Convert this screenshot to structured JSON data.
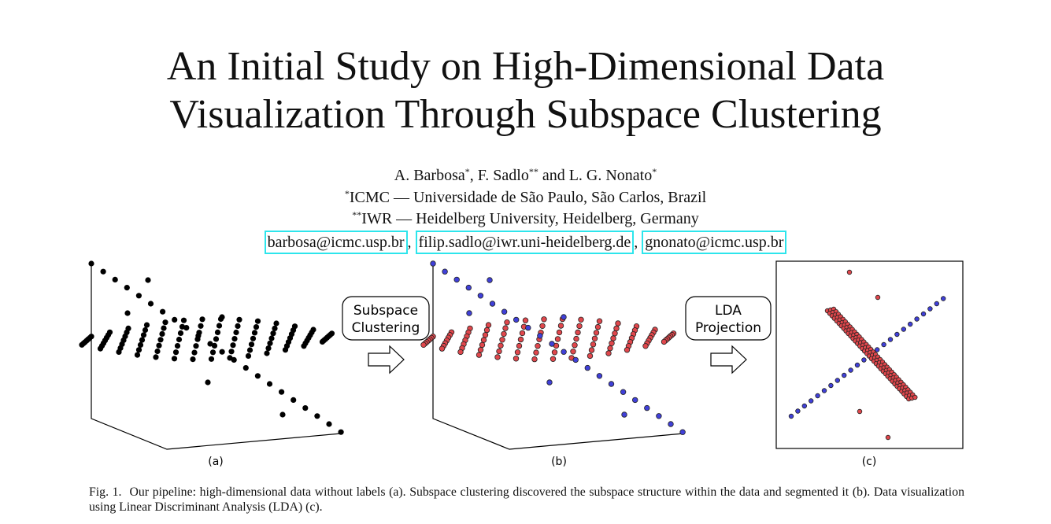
{
  "title": {
    "line1": "An Initial Study on High-Dimensional Data",
    "line2": "Visualization Through Subspace Clustering"
  },
  "authors": {
    "a1": "A. Barbosa",
    "a1_mark": "*",
    "sep1": ", F. Sadlo",
    "a2_mark": "**",
    "sep2": " and L. G. Nonato",
    "a3_mark": "*",
    "aff1_mark": "*",
    "aff1": "ICMC — Universidade de São Paulo, São Carlos, Brazil",
    "aff2_mark": "**",
    "aff2": "IWR — Heidelberg University, Heidelberg, Germany",
    "emails": [
      "barbosa@icmc.usp.br",
      "filip.sadlo@iwr.uni-heidelberg.de",
      "gnonato@icmc.usp.br"
    ],
    "email_sep": ", "
  },
  "figure": {
    "step1_label": [
      "Subspace",
      "Clustering"
    ],
    "step2_label": [
      "LDA",
      "Projection"
    ],
    "panel_labels": [
      "(a)",
      "(b)",
      "(c)"
    ],
    "colors": {
      "unlabeled": "#000000",
      "cluster_plane": "#e0474c",
      "cluster_line": "#4040d8",
      "point_edge": "#222222"
    }
  },
  "caption": {
    "label": "Fig. 1.",
    "text": "Our pipeline: high-dimensional data without labels (a). Subspace clustering discovered the subspace structure within the data and segmented it (b). Data visualization using Linear Discriminant Analysis (LDA) (c)."
  }
}
